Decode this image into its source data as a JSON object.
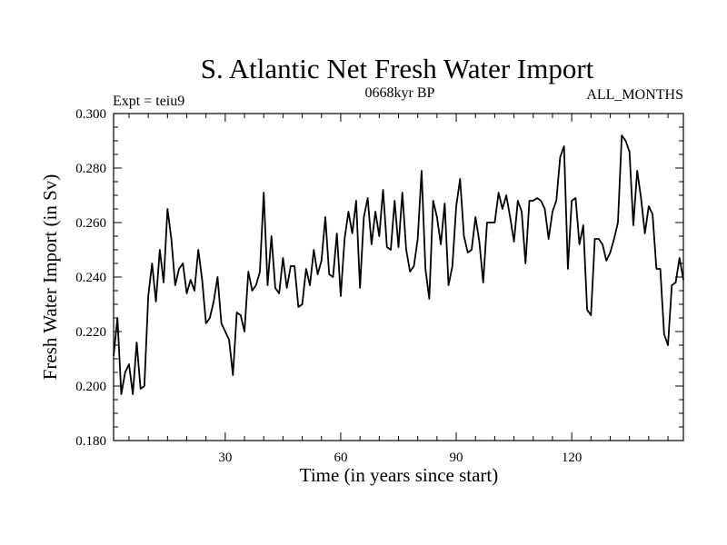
{
  "chart_data": {
    "type": "line",
    "title": "S. Atlantic Net Fresh Water Import",
    "subtitle_left": "Expt = teiu9",
    "subtitle_center": "0668kyr BP",
    "subtitle_right": "ALL_MONTHS",
    "xlabel": "Time (in years since start)",
    "ylabel": "Fresh Water Import (in Sv)",
    "xlim": [
      1,
      149
    ],
    "ylim": [
      0.18,
      0.3
    ],
    "xticks": [
      30,
      60,
      90,
      120
    ],
    "xtick_labels": [
      "30",
      "60",
      "90",
      "120"
    ],
    "yticks": [
      0.18,
      0.2,
      0.22,
      0.24,
      0.26,
      0.28,
      0.3
    ],
    "ytick_labels": [
      "0.180",
      "0.200",
      "0.220",
      "0.240",
      "0.260",
      "0.280",
      "0.300"
    ],
    "grid": false,
    "series": [
      {
        "name": "Fresh Water Import",
        "x": [
          1,
          2,
          3,
          4,
          5,
          6,
          7,
          8,
          9,
          10,
          11,
          12,
          13,
          14,
          15,
          16,
          17,
          18,
          19,
          20,
          21,
          22,
          23,
          24,
          25,
          26,
          27,
          28,
          29,
          30,
          31,
          32,
          33,
          34,
          35,
          36,
          37,
          38,
          39,
          40,
          41,
          42,
          43,
          44,
          45,
          46,
          47,
          48,
          49,
          50,
          51,
          52,
          53,
          54,
          55,
          56,
          57,
          58,
          59,
          60,
          61,
          62,
          63,
          64,
          65,
          66,
          67,
          68,
          69,
          70,
          71,
          72,
          73,
          74,
          75,
          76,
          77,
          78,
          79,
          80,
          81,
          82,
          83,
          84,
          85,
          86,
          87,
          88,
          89,
          90,
          91,
          92,
          93,
          94,
          95,
          96,
          97,
          98,
          99,
          100,
          101,
          102,
          103,
          104,
          105,
          106,
          107,
          108,
          109,
          110,
          111,
          112,
          113,
          114,
          115,
          116,
          117,
          118,
          119,
          120,
          121,
          122,
          123,
          124,
          125,
          126,
          127,
          128,
          129,
          130,
          131,
          132,
          133,
          134,
          135,
          136,
          137,
          138,
          139,
          140,
          141,
          142,
          143,
          144,
          145,
          146,
          147,
          148,
          149
        ],
        "values": [
          0.211,
          0.225,
          0.197,
          0.205,
          0.208,
          0.197,
          0.216,
          0.199,
          0.2,
          0.233,
          0.245,
          0.231,
          0.25,
          0.238,
          0.265,
          0.254,
          0.237,
          0.243,
          0.245,
          0.234,
          0.239,
          0.235,
          0.25,
          0.239,
          0.223,
          0.225,
          0.231,
          0.24,
          0.223,
          0.22,
          0.217,
          0.204,
          0.227,
          0.226,
          0.22,
          0.242,
          0.235,
          0.237,
          0.242,
          0.271,
          0.237,
          0.255,
          0.236,
          0.234,
          0.247,
          0.236,
          0.244,
          0.244,
          0.229,
          0.23,
          0.243,
          0.237,
          0.25,
          0.241,
          0.246,
          0.262,
          0.241,
          0.24,
          0.256,
          0.233,
          0.254,
          0.264,
          0.256,
          0.268,
          0.236,
          0.262,
          0.269,
          0.252,
          0.264,
          0.255,
          0.272,
          0.251,
          0.25,
          0.268,
          0.251,
          0.271,
          0.25,
          0.242,
          0.244,
          0.254,
          0.279,
          0.243,
          0.232,
          0.268,
          0.262,
          0.252,
          0.267,
          0.237,
          0.244,
          0.266,
          0.276,
          0.255,
          0.249,
          0.25,
          0.262,
          0.253,
          0.238,
          0.26,
          0.26,
          0.26,
          0.271,
          0.265,
          0.27,
          0.262,
          0.253,
          0.268,
          0.264,
          0.245,
          0.268,
          0.268,
          0.269,
          0.268,
          0.265,
          0.254,
          0.264,
          0.268,
          0.284,
          0.288,
          0.243,
          0.268,
          0.269,
          0.252,
          0.259,
          0.228,
          0.226,
          0.254,
          0.254,
          0.252,
          0.246,
          0.249,
          0.254,
          0.26,
          0.292,
          0.29,
          0.286,
          0.259,
          0.279,
          0.269,
          0.256,
          0.266,
          0.263,
          0.243,
          0.243,
          0.219,
          0.215,
          0.237,
          0.238,
          0.247,
          0.239
        ]
      }
    ]
  }
}
